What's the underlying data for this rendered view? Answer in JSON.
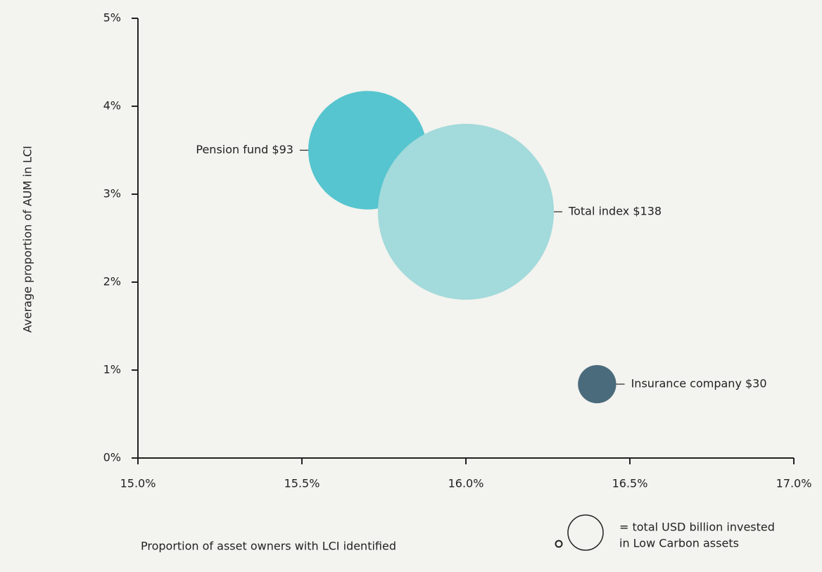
{
  "chart_data": {
    "type": "bubble",
    "x_label": "Proportion of asset owners with LCI identified",
    "y_label": "Average proportion of AUM in LCI",
    "series": [
      {
        "name": "Pension fund",
        "color": "#56c5cf",
        "x": 15.7,
        "y": 3.5,
        "size": 93,
        "label": "Pension fund $93"
      },
      {
        "name": "Total index",
        "color": "#a3dadb",
        "x": 16.0,
        "y": 2.8,
        "size": 138,
        "label": "Total index $138"
      },
      {
        "name": "Insurance company",
        "color": "#4a6b7c",
        "x": 16.4,
        "y": 0.84,
        "size": 30,
        "label": "Insurance company $30"
      }
    ],
    "xlim": [
      15,
      17
    ],
    "xticks": [
      {
        "value": 15,
        "label": "15.0%"
      },
      {
        "value": 15.5,
        "label": "15.5%"
      },
      {
        "value": 16,
        "label": "16.0%"
      },
      {
        "value": 16.5,
        "label": "16.5%"
      },
      {
        "value": 17,
        "label": "17.0%"
      }
    ],
    "ylim": [
      0,
      5
    ],
    "yticks": [
      {
        "value": 0,
        "label": "0%"
      },
      {
        "value": 1,
        "label": "1%"
      },
      {
        "value": 2,
        "label": "2%"
      },
      {
        "value": 3,
        "label": "3%"
      },
      {
        "value": 4,
        "label": "4%"
      },
      {
        "value": 5,
        "label": "5%"
      }
    ],
    "size_legend": [
      "= total USD billion invested",
      "in Low Carbon assets"
    ]
  }
}
